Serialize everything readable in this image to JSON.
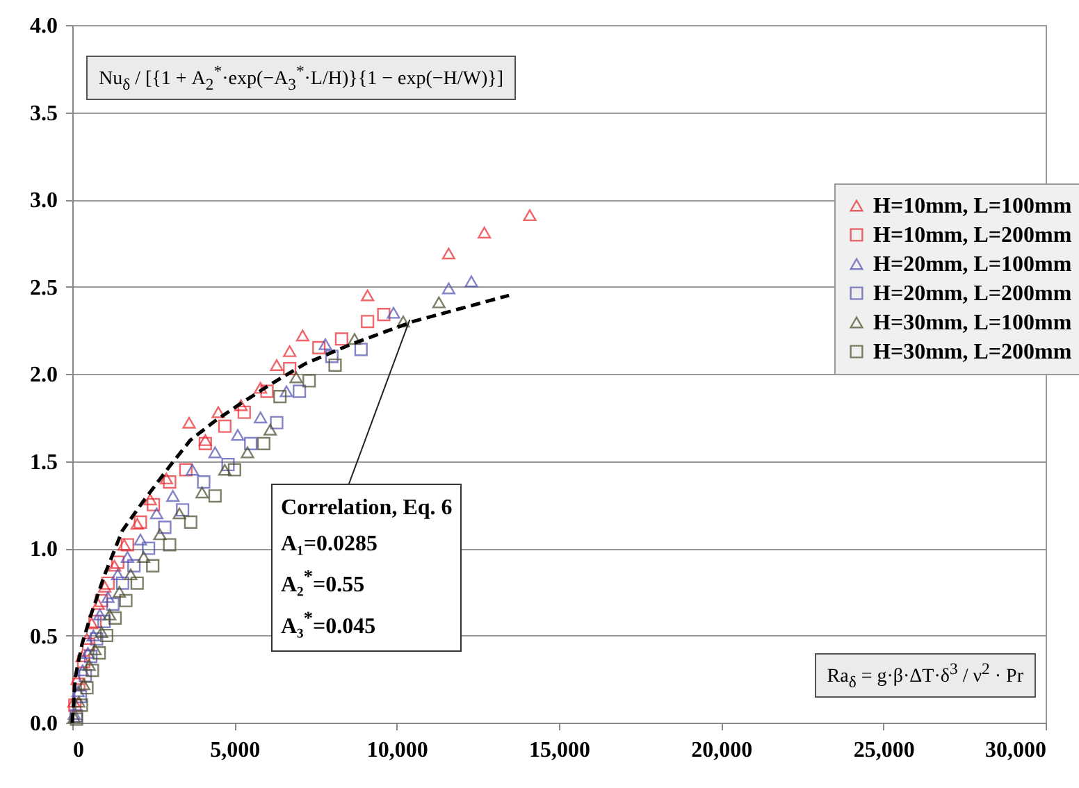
{
  "chart_data": {
    "type": "scatter",
    "xlabel": "Ra$_{δ}$ = g·β·ΔT·δ$^{3}$ / ν$^{2}$ · Pr",
    "ylabel": "Nu$_{δ}$ / [{1 + A$_{2}$$^{*}$·exp(−A$_{3}$$^{*}$·L/H)}{1 − exp(−H/W)}]",
    "xlim": [
      0,
      30000
    ],
    "xticks": [
      {
        "value": 0,
        "label": "0"
      },
      {
        "value": 5000,
        "label": "5,000"
      },
      {
        "value": 10000,
        "label": "10,000"
      },
      {
        "value": 15000,
        "label": "15,000"
      },
      {
        "value": 20000,
        "label": "20,000"
      },
      {
        "value": 25000,
        "label": "25,000"
      },
      {
        "value": 30000,
        "label": "30,000"
      }
    ],
    "ylim": [
      0,
      4
    ],
    "yticks": [
      {
        "value": 0,
        "label": "0.0"
      },
      {
        "value": 0.5,
        "label": "0.5"
      },
      {
        "value": 1,
        "label": "1.0"
      },
      {
        "value": 1.5,
        "label": "1.5"
      },
      {
        "value": 2,
        "label": "2.0"
      },
      {
        "value": 2.5,
        "label": "2.5"
      },
      {
        "value": 3,
        "label": "3.0"
      },
      {
        "value": 3.5,
        "label": "3.5"
      },
      {
        "value": 4,
        "label": "4.0"
      }
    ],
    "grid": "y",
    "legend": "right",
    "annotations": [
      {
        "text": "Correlation, Eq. 6",
        "x": 10400,
        "y": 2.31
      },
      "A₁=0.0285",
      "A₂$^{*}$=0.55",
      "A₃$^{*}$=0.045"
    ],
    "series": [
      {
        "name": "H=10mm, L=100mm",
        "color": "#e8262c",
        "marker": "triangle",
        "x": [
          50,
          150,
          300,
          450,
          600,
          800,
          1000,
          1300,
          1600,
          2000,
          2400,
          2900,
          3600,
          4100,
          4500,
          5200,
          5800,
          6300,
          6700,
          7100,
          9100,
          11600,
          12700,
          14100
        ],
        "values": [
          0.12,
          0.25,
          0.38,
          0.48,
          0.57,
          0.68,
          0.78,
          0.9,
          1.02,
          1.14,
          1.28,
          1.4,
          1.72,
          1.62,
          1.78,
          1.82,
          1.92,
          2.05,
          2.13,
          2.22,
          2.45,
          2.69,
          2.81,
          2.91
        ]
      },
      {
        "name": "H=10mm, L=200mm",
        "color": "#e8262c",
        "marker": "square",
        "x": [
          80,
          200,
          350,
          500,
          700,
          900,
          1100,
          1400,
          1700,
          2100,
          2500,
          3000,
          3500,
          4100,
          4700,
          5300,
          6000,
          6700,
          7600,
          8300,
          9100,
          9600
        ],
        "values": [
          0.1,
          0.22,
          0.35,
          0.45,
          0.58,
          0.7,
          0.8,
          0.92,
          1.02,
          1.15,
          1.25,
          1.38,
          1.45,
          1.6,
          1.7,
          1.78,
          1.9,
          2.03,
          2.15,
          2.2,
          2.3,
          2.34
        ]
      },
      {
        "name": "H=20mm, L=100mm",
        "color": "#5050b0",
        "marker": "triangle",
        "x": [
          60,
          180,
          320,
          480,
          650,
          850,
          1100,
          1400,
          1700,
          2100,
          2600,
          3100,
          3700,
          4400,
          5100,
          5800,
          6600,
          7800,
          9900,
          11600,
          12300
        ],
        "values": [
          0.05,
          0.18,
          0.3,
          0.4,
          0.5,
          0.62,
          0.72,
          0.85,
          0.95,
          1.05,
          1.2,
          1.3,
          1.45,
          1.55,
          1.65,
          1.75,
          1.9,
          2.17,
          2.35,
          2.49,
          2.53
        ]
      },
      {
        "name": "H=20mm, L=200mm",
        "color": "#5050b0",
        "marker": "square",
        "x": [
          120,
          250,
          400,
          570,
          750,
          980,
          1250,
          1550,
          1900,
          2350,
          2850,
          3400,
          4050,
          4800,
          5500,
          6300,
          7000,
          8000,
          8900
        ],
        "values": [
          0.04,
          0.15,
          0.27,
          0.38,
          0.48,
          0.58,
          0.68,
          0.8,
          0.9,
          1.0,
          1.12,
          1.22,
          1.38,
          1.48,
          1.6,
          1.72,
          1.9,
          2.1,
          2.14
        ]
      },
      {
        "name": "H=30mm, L=100mm",
        "color": "#4a4a2a",
        "marker": "triangle",
        "x": [
          60,
          200,
          350,
          520,
          700,
          900,
          1150,
          1450,
          1800,
          2200,
          2700,
          3300,
          4000,
          4700,
          5400,
          6100,
          6900,
          8700,
          10200,
          11300
        ],
        "values": [
          0.03,
          0.12,
          0.22,
          0.33,
          0.42,
          0.52,
          0.62,
          0.75,
          0.85,
          0.95,
          1.08,
          1.2,
          1.32,
          1.45,
          1.55,
          1.68,
          1.98,
          2.2,
          2.3,
          2.41
        ]
      },
      {
        "name": "H=30mm, L=200mm",
        "color": "#4a4a2a",
        "marker": "square",
        "x": [
          130,
          280,
          450,
          620,
          830,
          1060,
          1320,
          1650,
          2000,
          2480,
          3000,
          3650,
          4400,
          5000,
          5900,
          6400,
          7300,
          8100
        ],
        "values": [
          0.02,
          0.1,
          0.2,
          0.3,
          0.4,
          0.5,
          0.6,
          0.7,
          0.8,
          0.9,
          1.02,
          1.15,
          1.3,
          1.45,
          1.6,
          1.87,
          1.96,
          2.05
        ]
      },
      {
        "type": "line",
        "color": "#000000",
        "line_style": "dashed",
        "x": [
          0,
          90,
          300,
          560,
          1000,
          1540,
          2190,
          3000,
          3640,
          4400,
          5190,
          6200,
          7200,
          8600,
          10500,
          13460
        ],
        "values": [
          0,
          0.26,
          0.45,
          0.61,
          0.85,
          1.1,
          1.27,
          1.47,
          1.62,
          1.73,
          1.83,
          1.95,
          2.06,
          2.17,
          2.3,
          2.45
        ]
      }
    ]
  }
}
